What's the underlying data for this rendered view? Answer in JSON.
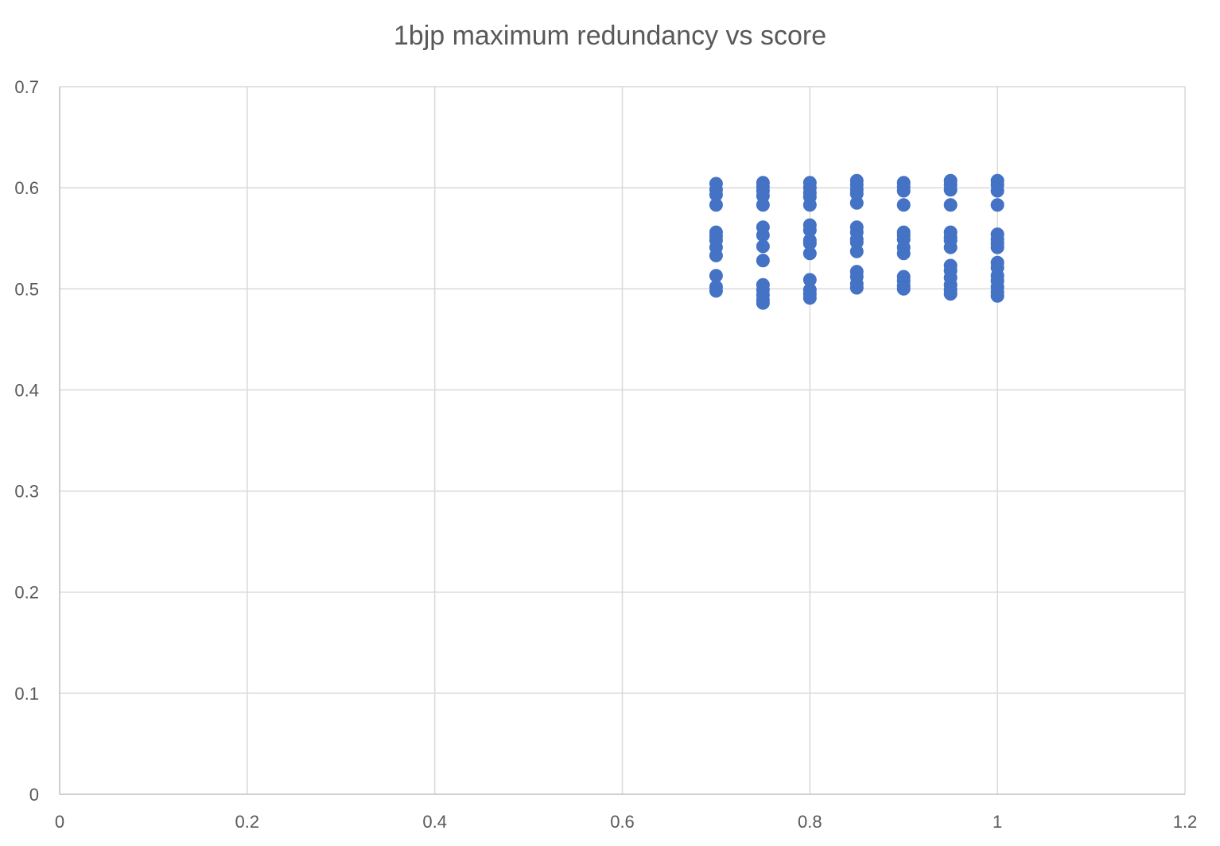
{
  "chart_data": {
    "type": "scatter",
    "title": "1bjp maximum redundancy vs score",
    "xlabel": "",
    "ylabel": "",
    "xlim": [
      0,
      1.2
    ],
    "ylim": [
      0,
      0.7
    ],
    "x_ticks": [
      "0",
      "0.2",
      "0.4",
      "0.6",
      "0.8",
      "1",
      "1.2"
    ],
    "y_ticks": [
      "0",
      "0.1",
      "0.2",
      "0.3",
      "0.4",
      "0.5",
      "0.6",
      "0.7"
    ],
    "grid": true,
    "legend": "none",
    "marker_color": "#4472C4",
    "series": [
      {
        "points": [
          {
            "x": 0.7,
            "y": 0.604
          },
          {
            "x": 0.7,
            "y": 0.598
          },
          {
            "x": 0.7,
            "y": 0.593
          },
          {
            "x": 0.7,
            "y": 0.583
          },
          {
            "x": 0.7,
            "y": 0.556
          },
          {
            "x": 0.7,
            "y": 0.552
          },
          {
            "x": 0.7,
            "y": 0.548
          },
          {
            "x": 0.7,
            "y": 0.541
          },
          {
            "x": 0.7,
            "y": 0.533
          },
          {
            "x": 0.7,
            "y": 0.513
          },
          {
            "x": 0.7,
            "y": 0.502
          },
          {
            "x": 0.7,
            "y": 0.498
          },
          {
            "x": 0.75,
            "y": 0.605
          },
          {
            "x": 0.75,
            "y": 0.601
          },
          {
            "x": 0.75,
            "y": 0.597
          },
          {
            "x": 0.75,
            "y": 0.592
          },
          {
            "x": 0.75,
            "y": 0.583
          },
          {
            "x": 0.75,
            "y": 0.561
          },
          {
            "x": 0.75,
            "y": 0.553
          },
          {
            "x": 0.75,
            "y": 0.542
          },
          {
            "x": 0.75,
            "y": 0.528
          },
          {
            "x": 0.75,
            "y": 0.504
          },
          {
            "x": 0.75,
            "y": 0.499
          },
          {
            "x": 0.75,
            "y": 0.494
          },
          {
            "x": 0.75,
            "y": 0.489
          },
          {
            "x": 0.75,
            "y": 0.486
          },
          {
            "x": 0.8,
            "y": 0.605
          },
          {
            "x": 0.8,
            "y": 0.6
          },
          {
            "x": 0.8,
            "y": 0.595
          },
          {
            "x": 0.8,
            "y": 0.591
          },
          {
            "x": 0.8,
            "y": 0.583
          },
          {
            "x": 0.8,
            "y": 0.563
          },
          {
            "x": 0.8,
            "y": 0.558
          },
          {
            "x": 0.8,
            "y": 0.548
          },
          {
            "x": 0.8,
            "y": 0.545
          },
          {
            "x": 0.8,
            "y": 0.535
          },
          {
            "x": 0.8,
            "y": 0.509
          },
          {
            "x": 0.8,
            "y": 0.499
          },
          {
            "x": 0.8,
            "y": 0.495
          },
          {
            "x": 0.8,
            "y": 0.491
          },
          {
            "x": 0.85,
            "y": 0.607
          },
          {
            "x": 0.85,
            "y": 0.603
          },
          {
            "x": 0.85,
            "y": 0.598
          },
          {
            "x": 0.85,
            "y": 0.594
          },
          {
            "x": 0.85,
            "y": 0.585
          },
          {
            "x": 0.85,
            "y": 0.561
          },
          {
            "x": 0.85,
            "y": 0.556
          },
          {
            "x": 0.85,
            "y": 0.549
          },
          {
            "x": 0.85,
            "y": 0.546
          },
          {
            "x": 0.85,
            "y": 0.537
          },
          {
            "x": 0.85,
            "y": 0.517
          },
          {
            "x": 0.85,
            "y": 0.512
          },
          {
            "x": 0.85,
            "y": 0.505
          },
          {
            "x": 0.85,
            "y": 0.501
          },
          {
            "x": 0.9,
            "y": 0.605
          },
          {
            "x": 0.9,
            "y": 0.601
          },
          {
            "x": 0.9,
            "y": 0.597
          },
          {
            "x": 0.9,
            "y": 0.583
          },
          {
            "x": 0.9,
            "y": 0.556
          },
          {
            "x": 0.9,
            "y": 0.553
          },
          {
            "x": 0.9,
            "y": 0.549
          },
          {
            "x": 0.9,
            "y": 0.541
          },
          {
            "x": 0.9,
            "y": 0.535
          },
          {
            "x": 0.9,
            "y": 0.512
          },
          {
            "x": 0.9,
            "y": 0.508
          },
          {
            "x": 0.9,
            "y": 0.503
          },
          {
            "x": 0.9,
            "y": 0.5
          },
          {
            "x": 0.95,
            "y": 0.607
          },
          {
            "x": 0.95,
            "y": 0.603
          },
          {
            "x": 0.95,
            "y": 0.598
          },
          {
            "x": 0.95,
            "y": 0.583
          },
          {
            "x": 0.95,
            "y": 0.556
          },
          {
            "x": 0.95,
            "y": 0.551
          },
          {
            "x": 0.95,
            "y": 0.548
          },
          {
            "x": 0.95,
            "y": 0.541
          },
          {
            "x": 0.95,
            "y": 0.523
          },
          {
            "x": 0.95,
            "y": 0.518
          },
          {
            "x": 0.95,
            "y": 0.511
          },
          {
            "x": 0.95,
            "y": 0.504
          },
          {
            "x": 0.95,
            "y": 0.499
          },
          {
            "x": 0.95,
            "y": 0.495
          },
          {
            "x": 1.0,
            "y": 0.607
          },
          {
            "x": 1.0,
            "y": 0.603
          },
          {
            "x": 1.0,
            "y": 0.597
          },
          {
            "x": 1.0,
            "y": 0.583
          },
          {
            "x": 1.0,
            "y": 0.554
          },
          {
            "x": 1.0,
            "y": 0.549
          },
          {
            "x": 1.0,
            "y": 0.545
          },
          {
            "x": 1.0,
            "y": 0.541
          },
          {
            "x": 1.0,
            "y": 0.526
          },
          {
            "x": 1.0,
            "y": 0.521
          },
          {
            "x": 1.0,
            "y": 0.513
          },
          {
            "x": 1.0,
            "y": 0.508
          },
          {
            "x": 1.0,
            "y": 0.502
          },
          {
            "x": 1.0,
            "y": 0.497
          },
          {
            "x": 1.0,
            "y": 0.493
          }
        ]
      }
    ]
  }
}
